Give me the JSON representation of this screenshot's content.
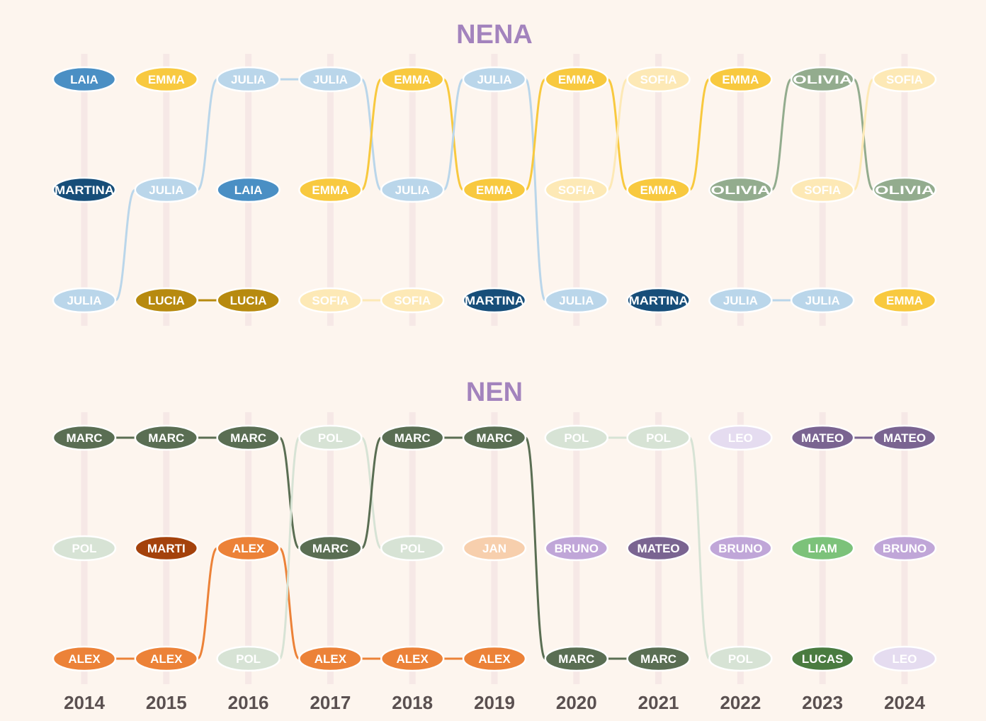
{
  "chart_data": [
    {
      "type": "bump",
      "title": "NENA",
      "x": [
        2014,
        2015,
        2016,
        2017,
        2018,
        2019,
        2020,
        2021,
        2022,
        2023,
        2024
      ],
      "ranks": [
        [
          "LAIA",
          "MARTINA",
          "JULIA"
        ],
        [
          "EMMA",
          "JULIA",
          "LUCIA"
        ],
        [
          "JULIA",
          "LAIA",
          "LUCIA"
        ],
        [
          "JULIA",
          "EMMA",
          "SOFIA"
        ],
        [
          "EMMA",
          "JULIA",
          "SOFIA"
        ],
        [
          "JULIA",
          "EMMA",
          "MARTINA"
        ],
        [
          "EMMA",
          "SOFIA",
          "JULIA"
        ],
        [
          "SOFIA",
          "EMMA",
          "MARTINA"
        ],
        [
          "EMMA",
          "OLIVIA",
          "JULIA"
        ],
        [
          "OLIVIA",
          "SOFIA",
          "JULIA"
        ],
        [
          "SOFIA",
          "OLIVIA",
          "EMMA"
        ]
      ],
      "colors": {
        "LAIA": "#4a8fc4",
        "MARTINA": "#174e79",
        "JULIA": "#bad6ea",
        "EMMA": "#f8c93f",
        "LUCIA": "#b78a0f",
        "SOFIA": "#fde9b6",
        "OLIVIA": "#93ac8e"
      }
    },
    {
      "type": "bump",
      "title": "NEN",
      "x": [
        2014,
        2015,
        2016,
        2017,
        2018,
        2019,
        2020,
        2021,
        2022,
        2023,
        2024
      ],
      "ranks": [
        [
          "MARC",
          "POL",
          "ALEX"
        ],
        [
          "MARC",
          "MARTI",
          "ALEX"
        ],
        [
          "MARC",
          "ALEX",
          "POL"
        ],
        [
          "POL",
          "MARC",
          "ALEX"
        ],
        [
          "MARC",
          "POL",
          "ALEX"
        ],
        [
          "MARC",
          "JAN",
          "ALEX"
        ],
        [
          "POL",
          "BRUNO",
          "MARC"
        ],
        [
          "POL",
          "MATEO",
          "MARC"
        ],
        [
          "LEO",
          "BRUNO",
          "POL"
        ],
        [
          "MATEO",
          "LIAM",
          "LUCAS"
        ],
        [
          "MATEO",
          "BRUNO",
          "LEO"
        ]
      ],
      "colors": {
        "MARC": "#5a6e53",
        "POL": "#d7e3d5",
        "ALEX": "#ec8238",
        "MARTI": "#a4420c",
        "JAN": "#f7cfad",
        "BRUNO": "#c0a6d8",
        "MATEO": "#7a6491",
        "LEO": "#e5dcf0",
        "LIAM": "#7cc27a",
        "LUCAS": "#4a7b40"
      }
    }
  ],
  "style": {
    "title_color": "#a383bd",
    "background": "#fdf5ee",
    "guide_color": "#f6e8e6"
  }
}
